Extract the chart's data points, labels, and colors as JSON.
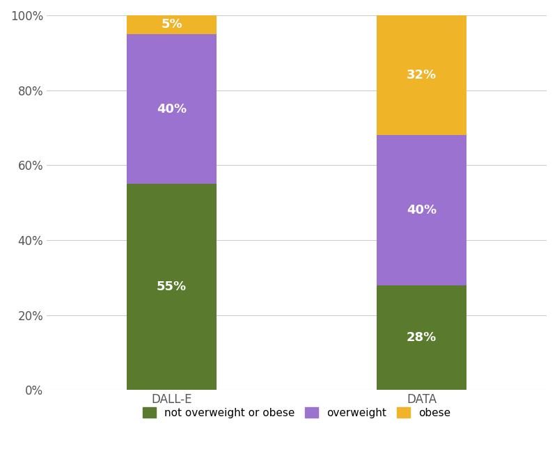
{
  "categories": [
    "DALL-E",
    "DATA"
  ],
  "segments": [
    {
      "label": "not overweight or obese",
      "color": "#5a7a2e",
      "values": [
        55,
        28
      ]
    },
    {
      "label": "overweight",
      "color": "#9b72cf",
      "values": [
        40,
        40
      ]
    },
    {
      "label": "obese",
      "color": "#f0b429",
      "values": [
        5,
        32
      ]
    }
  ],
  "ylim": [
    0,
    100
  ],
  "yticks": [
    0,
    20,
    40,
    60,
    80,
    100
  ],
  "ytick_labels": [
    "0%",
    "20%",
    "40%",
    "60%",
    "80%",
    "100%"
  ],
  "bar_width": 0.18,
  "bar_positions": [
    0.25,
    0.75
  ],
  "xlim": [
    0.0,
    1.0
  ],
  "label_color": "#ffffff",
  "label_fontsize": 13,
  "label_fontweight": "bold",
  "tick_fontsize": 12,
  "legend_fontsize": 11,
  "grid_color": "#cccccc",
  "grid_linewidth": 0.8,
  "background_color": "#ffffff"
}
